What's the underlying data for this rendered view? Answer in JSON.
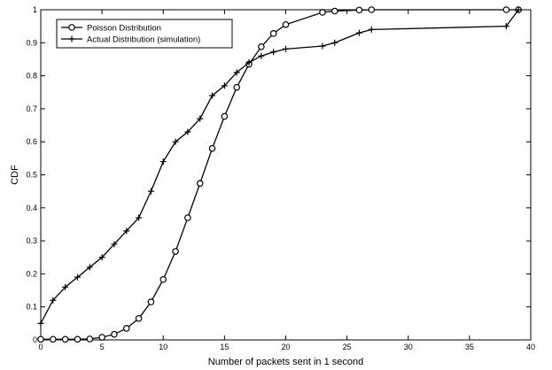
{
  "chart_data": {
    "type": "line",
    "title": "",
    "xlabel": "Number of packets sent in 1 second",
    "ylabel": "CDF",
    "xlim": [
      0,
      40
    ],
    "ylim": [
      0,
      1
    ],
    "xticks": [
      "0",
      "5",
      "10",
      "15",
      "20",
      "25",
      "30",
      "35",
      "40"
    ],
    "yticks": [
      "0",
      "0.1",
      "0.2",
      "0.3",
      "0.4",
      "0.5",
      "0.6",
      "0.7",
      "0.8",
      "0.9",
      "1"
    ],
    "grid": false,
    "legend_position": "top-left",
    "series": [
      {
        "name": "Poisson Distribution",
        "marker": "circle",
        "color": "#000000",
        "x": [
          0,
          1,
          2,
          3,
          4,
          5,
          6,
          7,
          8,
          9,
          10,
          11,
          12,
          13,
          14,
          15,
          16,
          17,
          18,
          19,
          20,
          23,
          24,
          26,
          27,
          38,
          39
        ],
        "y": [
          0.002,
          0.002,
          0.002,
          0.002,
          0.003,
          0.008,
          0.017,
          0.035,
          0.065,
          0.115,
          0.183,
          0.268,
          0.37,
          0.474,
          0.58,
          0.677,
          0.765,
          0.835,
          0.888,
          0.928,
          0.955,
          0.992,
          0.996,
          0.999,
          1.0,
          1.0,
          1.0
        ]
      },
      {
        "name": "Actual Distribution (simulation)",
        "marker": "plus",
        "color": "#000000",
        "x": [
          0,
          1,
          2,
          3,
          4,
          5,
          6,
          7,
          8,
          9,
          10,
          11,
          12,
          13,
          14,
          15,
          16,
          17,
          18,
          19,
          20,
          23,
          24,
          26,
          27,
          38,
          39
        ],
        "y": [
          0.05,
          0.12,
          0.16,
          0.19,
          0.22,
          0.25,
          0.29,
          0.33,
          0.37,
          0.45,
          0.54,
          0.6,
          0.63,
          0.67,
          0.74,
          0.77,
          0.81,
          0.84,
          0.86,
          0.872,
          0.881,
          0.89,
          0.9,
          0.93,
          0.94,
          0.95,
          1.0
        ]
      }
    ]
  }
}
